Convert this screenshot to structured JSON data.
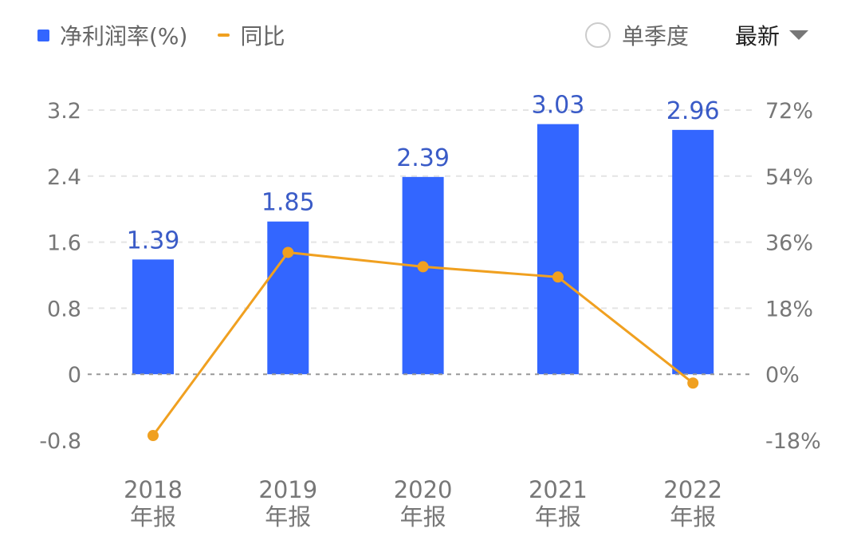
{
  "legend": {
    "bar_label": "净利润率(%)",
    "line_label": "同比"
  },
  "controls": {
    "single_quarter_label": "单季度",
    "single_quarter_checked": false,
    "latest_label": "最新"
  },
  "colors": {
    "bar": "#3366ff",
    "line": "#f0a020",
    "bar_label": "#3a5bc7"
  },
  "chart_data": {
    "type": "bar+line",
    "categories": [
      "2018\n年报",
      "2019\n年报",
      "2020\n年报",
      "2021\n年报",
      "2022\n年报"
    ],
    "series": [
      {
        "name": "净利润率(%)",
        "type": "bar",
        "axis": "left",
        "values": [
          1.39,
          1.85,
          2.39,
          3.03,
          2.96
        ]
      },
      {
        "name": "同比",
        "type": "line",
        "axis": "right",
        "values": [
          -16.7,
          33.2,
          29.3,
          26.5,
          -2.4
        ]
      }
    ],
    "left_axis": {
      "ticks": [
        "3.2",
        "2.4",
        "1.6",
        "0.8",
        "0",
        "-0.8"
      ],
      "ylim": [
        -0.8,
        3.2
      ]
    },
    "right_axis": {
      "ticks": [
        "72%",
        "54%",
        "36%",
        "18%",
        "0%",
        "-18%"
      ],
      "ylim": [
        -18,
        72
      ]
    },
    "grid": true,
    "legend_position": "top-left"
  }
}
